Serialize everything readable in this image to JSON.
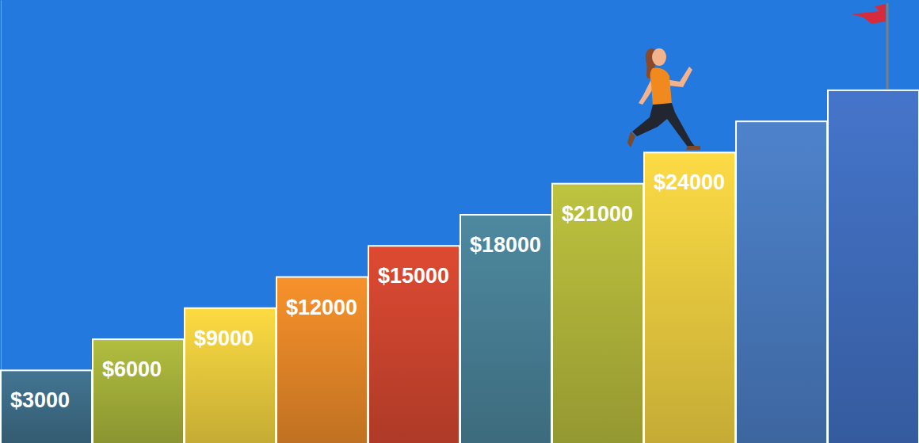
{
  "chart_data": {
    "type": "bar",
    "categories": [
      null,
      null,
      null,
      null,
      null,
      null,
      null,
      null,
      null,
      null
    ],
    "values": [
      3000,
      6000,
      9000,
      12000,
      15000,
      18000,
      21000,
      24000,
      27000,
      30000
    ],
    "value_labels": [
      "$3000",
      "$6000",
      "$9000",
      "$12000",
      "$15000",
      "$18000",
      "$21000",
      "$24000",
      null,
      null
    ],
    "colors": [
      "#3f6f8a",
      "#a8b43c",
      "#efd03f",
      "#ea8a29",
      "#d2462f",
      "#4a8298",
      "#b4b93c",
      "#efd040",
      "#4a7cc1",
      "#416fc0"
    ],
    "ylim": [
      -4000,
      38700
    ],
    "yticks": [],
    "data_labels": true,
    "tick_labels": false
  }
}
